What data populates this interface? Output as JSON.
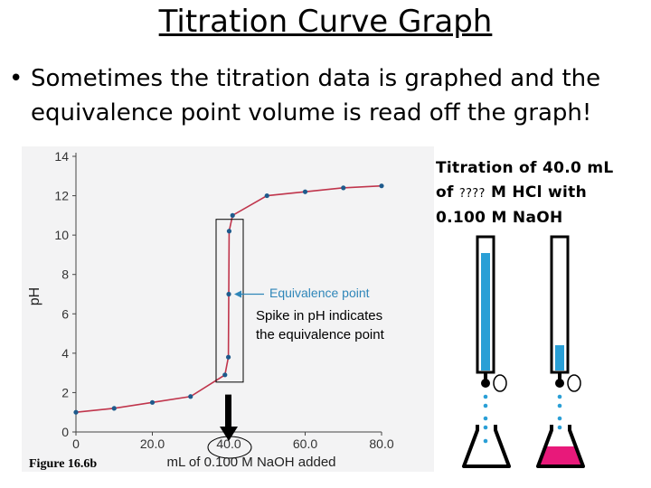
{
  "slide": {
    "title": "Titration Curve Graph",
    "bullet": "Sometimes the titration data is graphed and the equivalence point volume is read off the graph!",
    "side_title": {
      "line1": "Titration of 40.0 mL",
      "line2_a": "of",
      "line2_unknown": "????",
      "line2_b": "M HCl with",
      "line3": "0.100 M NaOH"
    }
  },
  "figure": {
    "label": "Figure 16.6b",
    "equivalence_label": "Equivalence point",
    "spike_note_1": "Spike in pH indicates",
    "spike_note_2": "the equivalence point"
  },
  "colors": {
    "curve": "#c0354c",
    "points": "#1e5a8c",
    "equivalence_text": "#2f86b9",
    "solution": "#2a9fd6",
    "pink": "#e8197a"
  },
  "chart_data": {
    "type": "line",
    "xlabel": "mL of 0.100 M NaOH added",
    "ylabel": "pH",
    "xlim": [
      0,
      80
    ],
    "ylim": [
      0,
      14
    ],
    "x_ticks": [
      "0",
      "20.0",
      "40.0",
      "60.0",
      "80.0"
    ],
    "y_ticks": [
      "0",
      "2",
      "4",
      "6",
      "8",
      "10",
      "12",
      "14"
    ],
    "grid": false,
    "series": [
      {
        "x": [
          0,
          10,
          20,
          30,
          39,
          39.9,
          40,
          40.1,
          41,
          50,
          60,
          70,
          80
        ],
        "values": [
          1.0,
          1.2,
          1.5,
          1.8,
          2.9,
          3.8,
          7.0,
          10.2,
          11.0,
          12.0,
          12.2,
          12.4,
          12.5
        ]
      }
    ]
  }
}
